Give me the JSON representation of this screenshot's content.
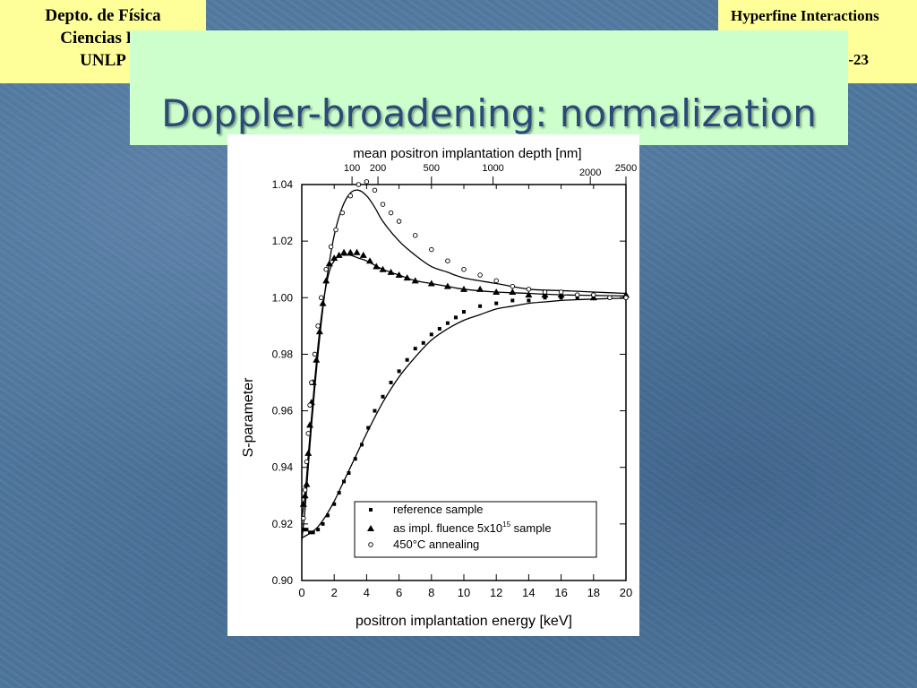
{
  "header": {
    "left_lines": [
      "Depto. de Física",
      "Ciencias Ex",
      "UNLP"
    ],
    "right_line1": "Hyperfine Interactions",
    "right_line2": "-23"
  },
  "slide": {
    "title": "Doppler-broadening: normalization"
  },
  "colors": {
    "background": "#50789f",
    "corner_panel": "#ffff99",
    "title_panel": "#ccffcc",
    "title_text": "#2a4a7a"
  },
  "chart_data": {
    "type": "scatter",
    "xlabel": "positron implantation energy [keV]",
    "ylabel": "S-parameter",
    "top_axis_label": "mean positron implantation depth [nm]",
    "top_axis_ticks": [
      {
        "label": "100",
        "energy": 3.1
      },
      {
        "label": "200",
        "energy": 4.7
      },
      {
        "label": "500",
        "energy": 8.0
      },
      {
        "label": "1000",
        "energy": 11.8
      },
      {
        "label": "2000",
        "energy": 17.8
      },
      {
        "label": "2500",
        "energy": 20.0
      }
    ],
    "xlim": [
      0,
      20
    ],
    "ylim": [
      0.9,
      1.04
    ],
    "x_ticks": [
      0,
      2,
      4,
      6,
      8,
      10,
      12,
      14,
      16,
      18,
      20
    ],
    "y_ticks": [
      "0.90",
      "0.92",
      "0.94",
      "0.96",
      "0.98",
      "1.00",
      "1.02",
      "1.04"
    ],
    "legend": {
      "placement": "lower-right",
      "entries": [
        "reference sample",
        "as impl. fluence 5x10",
        "450°C annealing"
      ],
      "superscript": "15",
      "suffix": " sample"
    },
    "series": [
      {
        "name": "reference sample",
        "marker": "square",
        "x": [
          0.1,
          0.3,
          0.5,
          0.7,
          1.0,
          1.3,
          1.6,
          2.0,
          2.3,
          2.6,
          2.9,
          3.3,
          3.7,
          4.1,
          4.5,
          5.0,
          5.5,
          6.0,
          6.5,
          7.0,
          7.5,
          8.0,
          8.5,
          9.0,
          9.5,
          10.0,
          11.0,
          12.0,
          13.0,
          14.0,
          15.0,
          16.0,
          17.0,
          18.0,
          19.0,
          20.0
        ],
        "y": [
          0.918,
          0.918,
          0.917,
          0.917,
          0.918,
          0.92,
          0.923,
          0.927,
          0.931,
          0.935,
          0.938,
          0.943,
          0.948,
          0.954,
          0.96,
          0.965,
          0.97,
          0.974,
          0.978,
          0.982,
          0.984,
          0.987,
          0.989,
          0.991,
          0.993,
          0.995,
          0.997,
          0.998,
          0.999,
          0.999,
          1.0,
          1.0,
          1.0,
          1.0,
          1.0,
          1.0
        ]
      },
      {
        "name": "as impl. fluence 5x10^15 sample",
        "marker": "triangle",
        "x": [
          0.1,
          0.2,
          0.3,
          0.4,
          0.5,
          0.6,
          0.7,
          0.9,
          1.1,
          1.3,
          1.5,
          1.7,
          2.0,
          2.3,
          2.6,
          3.0,
          3.4,
          3.8,
          4.2,
          4.6,
          5.0,
          5.5,
          6.0,
          6.5,
          7.0,
          8.0,
          9.0,
          10.0,
          11.0,
          12.0,
          13.0,
          14.0,
          15.0,
          16.0,
          18.0,
          20.0
        ],
        "y": [
          0.927,
          0.93,
          0.934,
          0.945,
          0.955,
          0.963,
          0.97,
          0.978,
          0.988,
          0.998,
          1.006,
          1.012,
          1.014,
          1.015,
          1.016,
          1.016,
          1.016,
          1.015,
          1.013,
          1.011,
          1.01,
          1.009,
          1.008,
          1.007,
          1.006,
          1.005,
          1.004,
          1.003,
          1.003,
          1.002,
          1.002,
          1.001,
          1.001,
          1.001,
          1.0,
          1.001
        ]
      },
      {
        "name": "450°C annealing",
        "marker": "circle",
        "x": [
          0.1,
          0.2,
          0.3,
          0.4,
          0.5,
          0.6,
          0.8,
          1.0,
          1.2,
          1.5,
          1.8,
          2.1,
          2.5,
          3.0,
          3.5,
          4.0,
          4.5,
          5.0,
          5.5,
          6.0,
          7.0,
          8.0,
          9.0,
          10.0,
          11.0,
          12.0,
          13.0,
          14.0,
          15.0,
          16.0,
          17.0,
          18.0,
          19.0,
          20.0
        ],
        "y": [
          0.922,
          0.932,
          0.942,
          0.952,
          0.962,
          0.97,
          0.98,
          0.99,
          1.0,
          1.01,
          1.018,
          1.024,
          1.03,
          1.036,
          1.04,
          1.041,
          1.038,
          1.033,
          1.03,
          1.027,
          1.022,
          1.017,
          1.013,
          1.01,
          1.008,
          1.006,
          1.004,
          1.003,
          1.002,
          1.002,
          1.001,
          1.001,
          1.0,
          1.0
        ]
      }
    ],
    "fit_curves": [
      {
        "name": "reference fit",
        "x": [
          0,
          0.3,
          0.6,
          1.0,
          1.5,
          2.0,
          2.5,
          3.0,
          3.5,
          4.0,
          5.0,
          6.0,
          7.0,
          8.0,
          9.0,
          10.0,
          11.0,
          12.0,
          13.0,
          14.0,
          15.0,
          16.0,
          17.0,
          18.0,
          19.0,
          20.0
        ],
        "y": [
          0.915,
          0.916,
          0.917,
          0.919,
          0.923,
          0.928,
          0.934,
          0.94,
          0.946,
          0.952,
          0.963,
          0.972,
          0.979,
          0.985,
          0.989,
          0.992,
          0.994,
          0.996,
          0.997,
          0.998,
          0.9985,
          0.999,
          0.9993,
          0.9995,
          0.9997,
          0.9998
        ]
      },
      {
        "name": "as impl. fit",
        "x": [
          0,
          0.2,
          0.4,
          0.6,
          0.8,
          1.0,
          1.2,
          1.4,
          1.6,
          1.8,
          2.0,
          2.3,
          2.6,
          3.0,
          3.5,
          4.0,
          5.0,
          6.0,
          7.0,
          8.0,
          9.0,
          10.0,
          12.0,
          14.0,
          16.0,
          18.0,
          20.0
        ],
        "y": [
          0.922,
          0.93,
          0.944,
          0.958,
          0.971,
          0.983,
          0.993,
          1.001,
          1.007,
          1.011,
          1.013,
          1.015,
          1.015,
          1.015,
          1.014,
          1.013,
          1.01,
          1.008,
          1.006,
          1.005,
          1.004,
          1.003,
          1.002,
          1.0015,
          1.001,
          1.0008,
          1.0006
        ]
      },
      {
        "name": "450°C fit",
        "x": [
          0,
          0.2,
          0.4,
          0.6,
          0.8,
          1.0,
          1.3,
          1.6,
          2.0,
          2.5,
          3.0,
          3.5,
          4.0,
          4.5,
          5.0,
          6.0,
          7.0,
          8.0,
          9.0,
          10.0,
          12.0,
          14.0,
          16.0,
          18.0,
          20.0
        ],
        "y": [
          0.914,
          0.925,
          0.94,
          0.955,
          0.968,
          0.98,
          0.996,
          1.009,
          1.022,
          1.032,
          1.037,
          1.038,
          1.036,
          1.032,
          1.027,
          1.02,
          1.015,
          1.011,
          1.009,
          1.007,
          1.005,
          1.003,
          1.0025,
          1.002,
          1.0015
        ]
      }
    ]
  }
}
